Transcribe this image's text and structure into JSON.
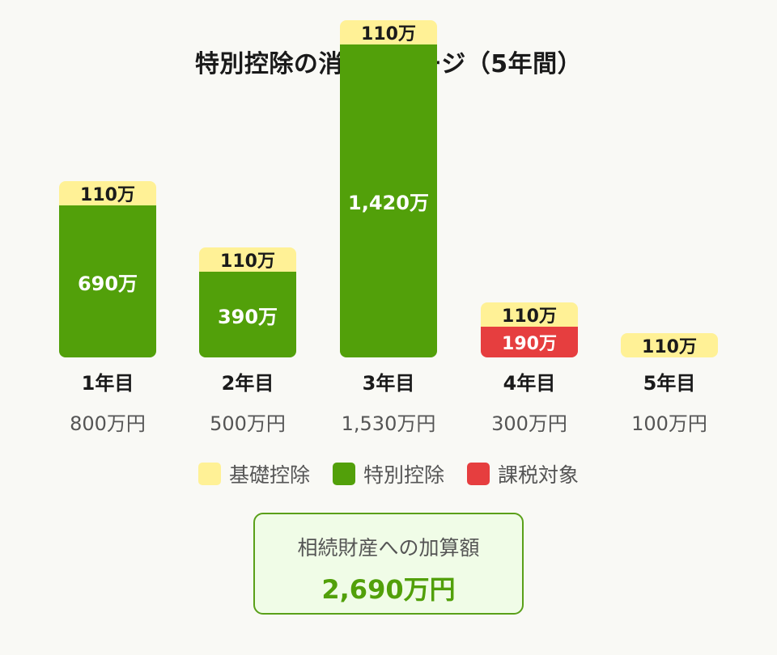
{
  "title": "特別控除の消化イメージ（5年間）",
  "colors": {
    "basic": "#fff196",
    "special": "#52a00a",
    "taxable": "#e63e3f",
    "background": "#f9f9f5"
  },
  "legend": [
    {
      "label": "基礎控除",
      "color": "#fff196"
    },
    {
      "label": "特別控除",
      "color": "#52a00a"
    },
    {
      "label": "課税対象",
      "color": "#e63e3f"
    }
  ],
  "years": [
    {
      "label": "1年目",
      "total": "800万円",
      "basic": "110万",
      "special": "690万",
      "taxable": null
    },
    {
      "label": "2年目",
      "total": "500万円",
      "basic": "110万",
      "special": "390万",
      "taxable": null
    },
    {
      "label": "3年目",
      "total": "1,530万円",
      "basic": "110万",
      "special": "1,420万",
      "taxable": null
    },
    {
      "label": "4年目",
      "total": "300万円",
      "basic": "110万",
      "special": null,
      "taxable": "190万"
    },
    {
      "label": "5年目",
      "total": "100万円",
      "basic": "110万",
      "special": null,
      "taxable": null
    }
  ],
  "summary": {
    "label": "相続財産への加算額",
    "value": "2,690万円"
  },
  "chart_data": {
    "type": "bar",
    "stacked": true,
    "title": "特別控除の消化イメージ（5年間）",
    "categories": [
      "1年目",
      "2年目",
      "3年目",
      "4年目",
      "5年目"
    ],
    "category_totals": [
      "800万円",
      "500万円",
      "1,530万円",
      "300万円",
      "100万円"
    ],
    "unit": "万円",
    "series": [
      {
        "name": "基礎控除",
        "color": "#fff196",
        "values": [
          110,
          110,
          110,
          110,
          110
        ]
      },
      {
        "name": "特別控除",
        "color": "#52a00a",
        "values": [
          690,
          390,
          1420,
          0,
          0
        ]
      },
      {
        "name": "課税対象",
        "color": "#e63e3f",
        "values": [
          0,
          0,
          0,
          190,
          0
        ]
      }
    ],
    "legend_position": "bottom",
    "grid": false,
    "annotations": [
      {
        "text": "相続財産への加算額",
        "value": "2,690万円"
      }
    ]
  }
}
